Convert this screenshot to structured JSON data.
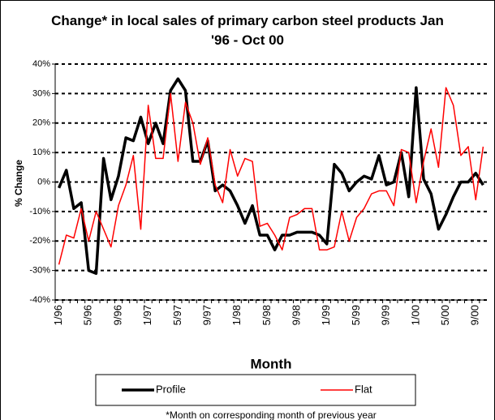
{
  "chart_data": {
    "type": "line",
    "title": "Change* in local sales of primary carbon steel products Jan '96 - Oct 00",
    "x_label": "Month",
    "y_label": "% Change",
    "footnote": "*Month on corresponding month of previous year",
    "categories": [
      "1/96",
      null,
      null,
      null,
      "5/96",
      null,
      null,
      null,
      "9/96",
      null,
      null,
      null,
      "1/97",
      null,
      null,
      null,
      "5/97",
      null,
      null,
      null,
      "9/97",
      null,
      null,
      null,
      "1/98",
      null,
      null,
      null,
      "5/98",
      null,
      null,
      null,
      "9/98",
      null,
      null,
      null,
      "1/99",
      null,
      null,
      null,
      "5/99",
      null,
      null,
      null,
      "9/99",
      null,
      null,
      null,
      "1/00",
      null,
      null,
      null,
      "5/00",
      null,
      null,
      null,
      "9/00",
      null
    ],
    "series": [
      {
        "name": "Profile",
        "color": "#000000",
        "values": [
          -2,
          4,
          -9,
          -7,
          -30,
          -31,
          8,
          -6,
          2,
          15,
          14,
          22,
          13,
          20,
          13,
          31,
          35,
          31,
          7,
          7,
          14,
          -3,
          -1,
          -3,
          -8,
          -14,
          -8,
          -18,
          -18,
          -23,
          -18,
          -18,
          -17,
          -17,
          -17,
          -18,
          -21,
          6,
          3,
          -3,
          0,
          2,
          1,
          9,
          -1,
          0,
          10,
          -5,
          32,
          1,
          -4,
          -16,
          -11,
          -5,
          0,
          0,
          3,
          -1
        ]
      },
      {
        "name": "Flat",
        "color": "#ff0000",
        "values": [
          -28,
          -18,
          -19,
          -9,
          -20,
          -10,
          -16,
          -22,
          -8,
          -1,
          9,
          -16,
          26,
          8,
          8,
          30,
          7,
          27,
          20,
          6,
          15,
          -1,
          -7,
          11,
          2,
          8,
          7,
          -15,
          -14,
          -18,
          -23,
          -12,
          -11,
          -9,
          -9,
          -23,
          -23,
          -22,
          -10,
          -20,
          -12,
          -9,
          -4,
          -3,
          -3,
          -8,
          11,
          10,
          -7,
          7,
          18,
          5,
          32,
          26,
          9,
          12,
          -6,
          12
        ]
      }
    ],
    "ylim": [
      -40,
      40
    ],
    "yticks": [
      {
        "value": -40,
        "label": "-40%"
      },
      {
        "value": -30,
        "label": "-30%"
      },
      {
        "value": -20,
        "label": "-20%"
      },
      {
        "value": -10,
        "label": "-10%"
      },
      {
        "value": 0,
        "label": "0%"
      },
      {
        "value": 10,
        "label": "10%"
      },
      {
        "value": 20,
        "label": "20%"
      },
      {
        "value": 30,
        "label": "30%"
      },
      {
        "value": 40,
        "label": "40%"
      }
    ],
    "grid": true,
    "legend": "bottom"
  }
}
